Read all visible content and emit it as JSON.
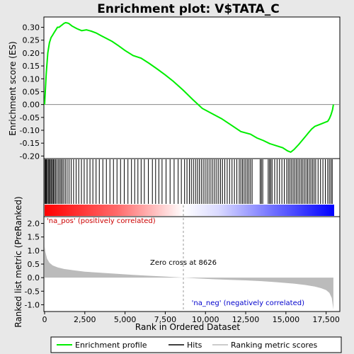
{
  "chart_data": {
    "type": "line",
    "title": "Enrichment plot: V$TATA_C",
    "top_panel": {
      "ylabel": "Enrichment score (ES)",
      "ylim": [
        -0.21,
        0.34
      ],
      "yticks": [
        0.3,
        0.25,
        0.2,
        0.15,
        0.1,
        0.05,
        0.0,
        -0.05,
        -0.1,
        -0.15,
        -0.2
      ],
      "ytick_labels": [
        "0.30",
        "0.25",
        "0.20",
        "0.15",
        "0.10",
        "0.05",
        "0.00",
        "-0.05",
        "-0.10",
        "-0.15",
        "-0.20"
      ],
      "series": [
        {
          "name": "Enrichment profile",
          "color": "#00ee00",
          "x": [
            0,
            100,
            200,
            300,
            400,
            500,
            600,
            700,
            800,
            900,
            1000,
            1100,
            1200,
            1300,
            1400,
            1500,
            1700,
            2000,
            2300,
            2600,
            2900,
            3200,
            3500,
            3800,
            4200,
            4600,
            5000,
            5500,
            6000,
            6500,
            7000,
            7500,
            8000,
            8626,
            9200,
            9800,
            10400,
            11000,
            11600,
            12200,
            12800,
            13200,
            13600,
            14000,
            14400,
            14800,
            15100,
            15300,
            15500,
            15800,
            16000,
            16200,
            16400,
            16600,
            16800,
            17000,
            17200,
            17400,
            17600,
            17700,
            17800,
            17900,
            17950
          ],
          "y": [
            0.0,
            0.12,
            0.2,
            0.24,
            0.26,
            0.27,
            0.28,
            0.29,
            0.3,
            0.3,
            0.305,
            0.31,
            0.315,
            0.318,
            0.317,
            0.315,
            0.305,
            0.295,
            0.287,
            0.29,
            0.285,
            0.278,
            0.268,
            0.258,
            0.245,
            0.228,
            0.21,
            0.19,
            0.18,
            0.16,
            0.138,
            0.115,
            0.09,
            0.055,
            0.02,
            -0.015,
            -0.035,
            -0.055,
            -0.08,
            -0.105,
            -0.115,
            -0.13,
            -0.14,
            -0.152,
            -0.16,
            -0.168,
            -0.18,
            -0.185,
            -0.175,
            -0.155,
            -0.14,
            -0.125,
            -0.11,
            -0.095,
            -0.085,
            -0.08,
            -0.075,
            -0.07,
            -0.065,
            -0.055,
            -0.04,
            -0.02,
            0.0
          ]
        }
      ]
    },
    "hits_panel": {
      "hit_positions": [
        20,
        60,
        110,
        170,
        230,
        290,
        350,
        410,
        480,
        540,
        600,
        680,
        760,
        850,
        940,
        1020,
        1100,
        1190,
        1290,
        1400,
        1520,
        1650,
        1800,
        1960,
        2120,
        2290,
        2460,
        2640,
        2820,
        3000,
        3200,
        3400,
        3620,
        3840,
        4060,
        4280,
        4500,
        4720,
        4950,
        5180,
        5400,
        5600,
        5800,
        6000,
        6200,
        6450,
        6700,
        6900,
        7100,
        7300,
        7550,
        7800,
        8050,
        8300,
        8500,
        8700,
        8850,
        9000,
        9120,
        9250,
        9380,
        9500,
        9620,
        9740,
        9860,
        9980,
        10100,
        10220,
        10340,
        10460,
        10580,
        10700,
        10820,
        10940,
        11060,
        11200,
        11350,
        11500,
        11650,
        11800,
        11950,
        12100,
        12200,
        12300,
        12400,
        12500,
        12600,
        12700,
        12800,
        12900,
        13400,
        13480,
        13560,
        13900,
        13980,
        14060,
        14140,
        14300,
        14450,
        14600,
        14750,
        14900,
        15050,
        15150,
        15250,
        15350,
        15450,
        15550,
        15650,
        15750,
        15850,
        15950,
        16050,
        16150,
        16250,
        16350,
        16450,
        16550,
        16650,
        16750,
        16850,
        17000,
        17150,
        17300,
        17450,
        17600,
        17700,
        17800,
        17880
      ]
    },
    "metric_panel": {
      "ylabel": "Ranked list metric (PreRanked)",
      "xlabel": "Rank in Ordered Dataset",
      "ylim": [
        -1.25,
        2.25
      ],
      "yticks": [
        2.0,
        1.5,
        1.0,
        0.5,
        0.0,
        -0.5,
        -1.0
      ],
      "ytick_labels": [
        "2.0",
        "1.5",
        "1.0",
        "0.5",
        "0.0",
        "-0.5",
        "-1.0"
      ],
      "xlim": [
        0,
        18000
      ],
      "xticks": [
        0,
        2500,
        5000,
        7500,
        10000,
        12500,
        15000,
        17500
      ],
      "xtick_labels": [
        "0",
        "2,500",
        "5,000",
        "7,500",
        "10,000",
        "12,500",
        "15,000",
        "17,500"
      ],
      "metric_x": [
        0,
        50,
        150,
        300,
        500,
        800,
        1200,
        1800,
        2500,
        3500,
        4500,
        5500,
        6500,
        7500,
        8626,
        9500,
        10500,
        11500,
        12500,
        13500,
        14500,
        15500,
        16200,
        16800,
        17200,
        17500,
        17700,
        17850,
        17950
      ],
      "metric_y": [
        1.15,
        0.95,
        0.7,
        0.55,
        0.45,
        0.38,
        0.32,
        0.27,
        0.22,
        0.18,
        0.14,
        0.1,
        0.07,
        0.04,
        0.0,
        -0.03,
        -0.06,
        -0.08,
        -0.1,
        -0.13,
        -0.17,
        -0.22,
        -0.27,
        -0.33,
        -0.39,
        -0.46,
        -0.56,
        -0.75,
        -1.18
      ],
      "zero_cross": 8626,
      "zero_cross_label": "Zero cross at 8626",
      "pos_label": "'na_pos' (positively correlated)",
      "neg_label": "'na_neg' (negatively correlated)"
    },
    "legend": {
      "placement": "bottom",
      "entries": [
        {
          "label": "Enrichment profile",
          "color": "#00ee00"
        },
        {
          "label": "Hits",
          "color": "#000000"
        },
        {
          "label": "Ranking metric scores",
          "color": "#bbbbbb"
        }
      ]
    },
    "colors": {
      "positive": "#ff0000",
      "mid": "#ffffff",
      "negative": "#0000ff",
      "pos_label": "#cc0000",
      "neg_label": "#0000cc"
    }
  }
}
